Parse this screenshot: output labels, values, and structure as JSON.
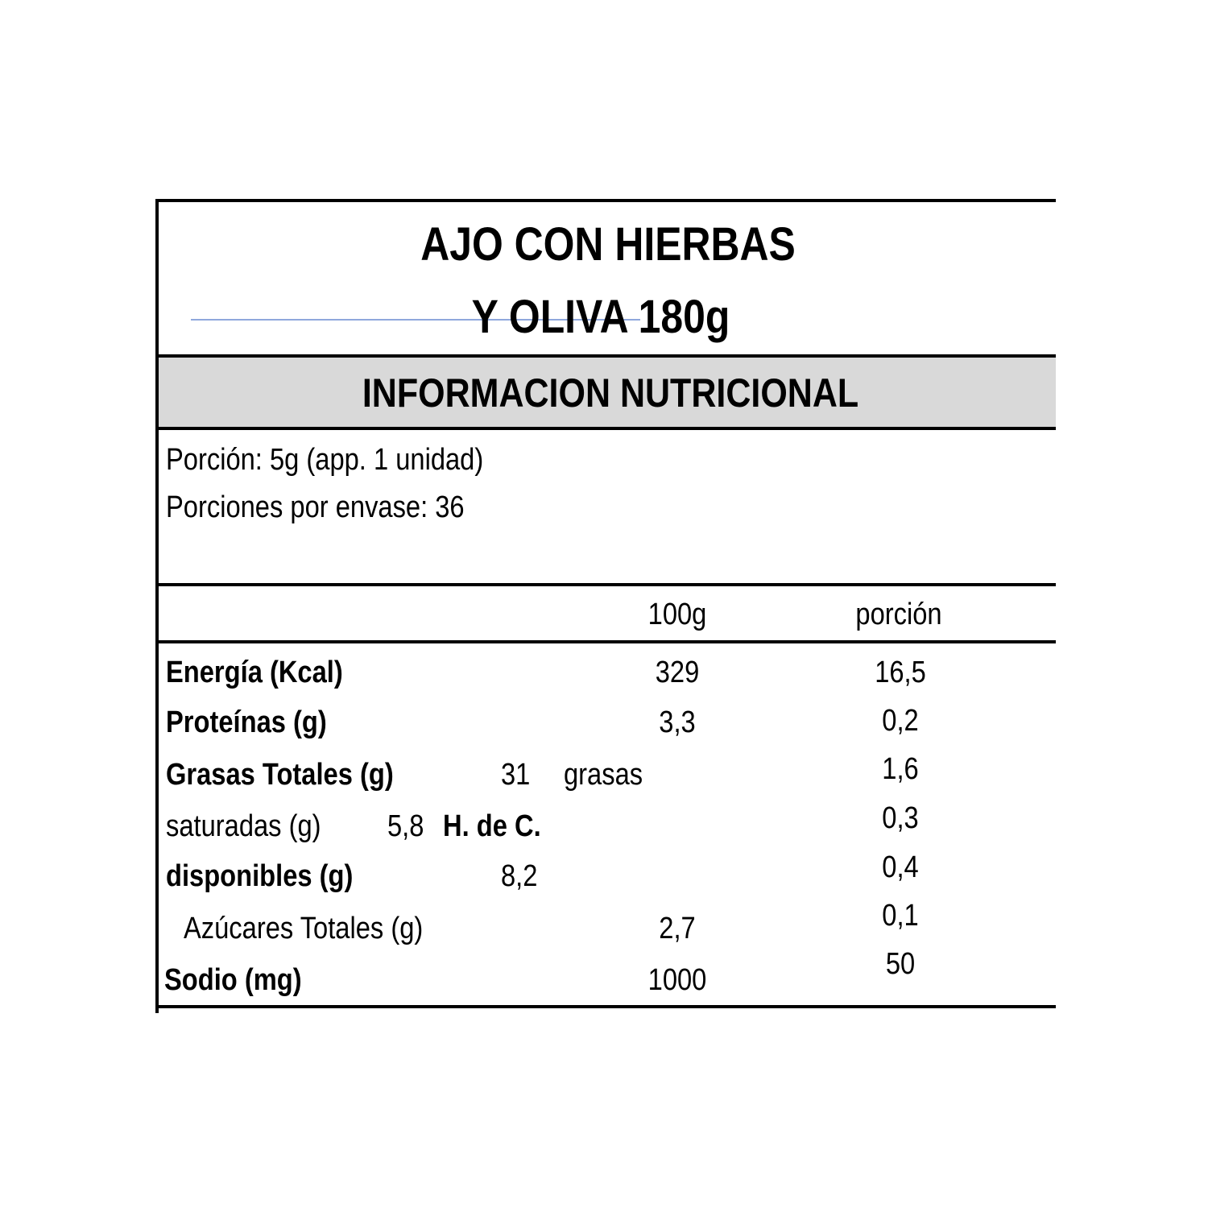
{
  "title": {
    "line1": "AJO CON HIERBAS",
    "line2": "Y OLIVA 180g"
  },
  "section_header": "INFORMACION NUTRICIONAL",
  "serving": {
    "portion": "Porción: 5g (app. 1 unidad)",
    "servings_per_package": "Porciones por envase: 36"
  },
  "columns": {
    "per_100g": "100g",
    "per_portion": "porción"
  },
  "rows": {
    "energy": {
      "label": "Energía (Kcal)",
      "per_100g": "329"
    },
    "protein": {
      "label": "Proteínas (g)",
      "per_100g": "3,3"
    },
    "fat": {
      "label": "Grasas Totales (g)",
      "per_100g": "31",
      "trailing": "grasas"
    },
    "saturated": {
      "label": "saturadas (g)",
      "per_100g": "5,8",
      "trailing": "H. de C."
    },
    "carbs": {
      "label": "disponibles (g)",
      "per_100g": "8,2"
    },
    "sugars": {
      "label": "Azúcares Totales (g)",
      "per_100g": "2,7"
    },
    "sodium": {
      "label": "Sodio (mg)",
      "per_100g": "1000"
    }
  },
  "portion_values": [
    "16,5",
    "0,2",
    "1,6",
    "0,3",
    "0,4",
    "0,1",
    "50"
  ],
  "colors": {
    "band": "#d9d9d9",
    "stray_line": "#8fa8dc",
    "border": "#000000"
  }
}
